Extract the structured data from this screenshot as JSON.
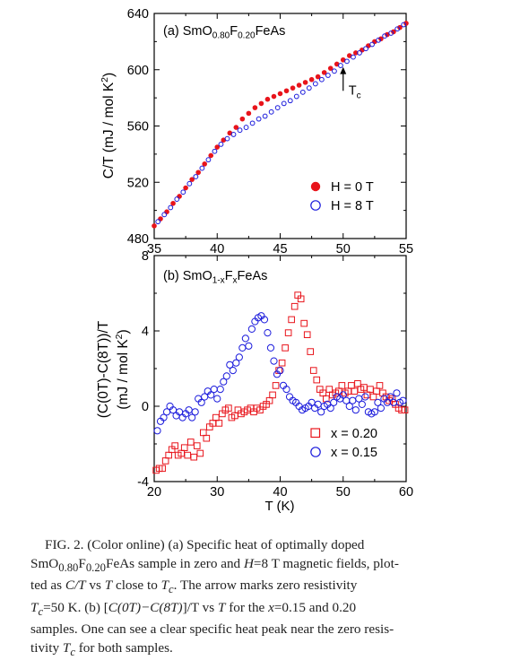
{
  "chart_data": [
    {
      "type": "scatter",
      "panel_label": "(a) SmO",
      "panel_sub1": "0.80",
      "panel_mid": "F",
      "panel_sub2": "0.20",
      "panel_tail": "FeAs",
      "ylabel": "C/T (mJ / mol K",
      "ylabel_sup": "2",
      "ylabel_end": ")",
      "xlim": [
        35,
        55
      ],
      "ylim": [
        480,
        640
      ],
      "xticks": [
        "35",
        "40",
        "45",
        "50",
        "55"
      ],
      "yticks": [
        "480",
        "520",
        "560",
        "600",
        "640"
      ],
      "annotation_arrow_x": 50,
      "annotation_label": "T",
      "annotation_sub": "c",
      "legend_position": "bottom-right",
      "series": [
        {
          "name": "H = 0 T",
          "marker": "filled-circle",
          "color": "#e8141b",
          "x": [
            35.0,
            35.5,
            36.0,
            36.5,
            37.0,
            37.5,
            38.0,
            38.5,
            39.0,
            39.5,
            40.0,
            40.5,
            41.0,
            41.5,
            42.0,
            42.5,
            43.0,
            43.5,
            44.0,
            44.5,
            45.0,
            45.5,
            46.0,
            46.5,
            47.0,
            47.5,
            48.0,
            48.5,
            49.0,
            49.5,
            50.0,
            50.5,
            51.0,
            51.5,
            52.0,
            52.5,
            53.0,
            53.5,
            54.0,
            54.5,
            55.0
          ],
          "y": [
            489,
            494,
            499,
            505,
            510,
            516,
            522,
            527,
            533,
            539,
            545,
            550,
            555,
            559,
            565,
            569,
            573,
            576,
            579,
            581,
            583,
            585,
            587,
            589,
            591,
            593,
            595,
            598,
            601,
            604,
            607,
            610,
            612,
            614,
            617,
            620,
            622,
            625,
            627,
            630,
            633
          ]
        },
        {
          "name": "H = 8 T",
          "marker": "open-circle",
          "color": "#1a1adc",
          "x": [
            35.3,
            35.8,
            36.3,
            36.8,
            37.3,
            37.8,
            38.3,
            38.8,
            39.3,
            39.8,
            40.3,
            40.8,
            41.3,
            41.8,
            42.3,
            42.8,
            43.3,
            43.8,
            44.3,
            44.8,
            45.3,
            45.8,
            46.3,
            46.8,
            47.3,
            47.8,
            48.3,
            48.8,
            49.3,
            49.8,
            50.3,
            50.8,
            51.3,
            51.8,
            52.3,
            52.8,
            53.3,
            53.8,
            54.3,
            54.8
          ],
          "y": [
            492,
            497,
            502,
            508,
            513,
            519,
            524,
            530,
            536,
            542,
            547,
            551,
            554,
            557,
            559,
            562,
            565,
            567,
            570,
            573,
            576,
            578,
            581,
            584,
            587,
            590,
            593,
            596,
            599,
            603,
            606,
            609,
            612,
            615,
            618,
            621,
            624,
            626,
            629,
            632
          ]
        }
      ]
    },
    {
      "type": "scatter",
      "panel_label": "(b) SmO",
      "panel_sub1": "1-x",
      "panel_mid": "F",
      "panel_sub2": "x",
      "panel_tail": "FeAs",
      "ylabel_line1": "(C(0T)-C(8T))/T",
      "ylabel_line2": "(mJ / mol K",
      "ylabel_sup": "2",
      "ylabel_end": ")",
      "xlabel": "T (K)",
      "xlim": [
        20,
        60
      ],
      "ylim": [
        -4,
        8
      ],
      "xticks": [
        "20",
        "30",
        "40",
        "50",
        "60"
      ],
      "yticks": [
        "-4",
        "0",
        "4",
        "8"
      ],
      "legend_position": "bottom-right",
      "series": [
        {
          "name": "x = 0.20",
          "marker": "open-square",
          "color": "#e8141b",
          "x": [
            20.3,
            20.8,
            21.3,
            21.8,
            22.3,
            22.8,
            23.3,
            23.8,
            24.3,
            24.8,
            25.3,
            25.8,
            26.3,
            26.8,
            27.3,
            27.8,
            28.3,
            28.8,
            29.3,
            29.8,
            30.3,
            30.8,
            31.3,
            31.8,
            32.3,
            32.8,
            33.3,
            33.8,
            34.3,
            34.8,
            35.3,
            35.8,
            36.3,
            36.8,
            37.3,
            37.8,
            38.3,
            38.8,
            39.3,
            39.8,
            40.3,
            40.8,
            41.3,
            41.8,
            42.3,
            42.8,
            43.3,
            43.8,
            44.3,
            44.8,
            45.3,
            45.8,
            46.3,
            46.8,
            47.3,
            47.8,
            48.3,
            48.8,
            49.3,
            49.8,
            50.3,
            50.8,
            51.3,
            51.8,
            52.3,
            52.8,
            53.3,
            53.8,
            54.3,
            54.8,
            55.3,
            55.8,
            56.3,
            56.8,
            57.3,
            57.8,
            58.3,
            58.8,
            59.3,
            59.8
          ],
          "y": [
            -3.4,
            -3.3,
            -3.3,
            -2.9,
            -2.6,
            -2.3,
            -2.1,
            -2.6,
            -2.5,
            -2.2,
            -2.6,
            -1.9,
            -2.7,
            -2.1,
            -2.5,
            -1.4,
            -1.7,
            -1.1,
            -0.9,
            -0.6,
            -0.9,
            -0.4,
            -0.2,
            -0.1,
            -0.6,
            -0.5,
            -0.2,
            -0.4,
            -0.3,
            -0.2,
            -0.1,
            -0.3,
            -0.1,
            -0.2,
            0.0,
            0.1,
            0.3,
            0.6,
            1.1,
            1.9,
            2.3,
            3.1,
            3.9,
            4.6,
            5.3,
            5.9,
            5.7,
            4.4,
            3.8,
            2.9,
            1.9,
            1.4,
            0.9,
            0.7,
            0.4,
            0.9,
            0.6,
            0.7,
            0.8,
            1.1,
            0.7,
            0.8,
            1.1,
            0.8,
            1.2,
            0.9,
            1.0,
            0.6,
            0.9,
            0.5,
            0.8,
            1.1,
            0.7,
            0.5,
            0.3,
            0.4,
            0.1,
            -0.1,
            -0.2,
            -0.2
          ]
        },
        {
          "name": "x = 0.15",
          "marker": "open-circle",
          "color": "#1a1adc",
          "x": [
            20.5,
            21.0,
            21.5,
            22.0,
            22.5,
            23.0,
            23.5,
            24.0,
            24.5,
            25.0,
            25.5,
            26.0,
            26.5,
            27.0,
            27.5,
            28.0,
            28.5,
            29.0,
            29.5,
            30.0,
            30.5,
            31.0,
            31.5,
            32.0,
            32.5,
            33.0,
            33.5,
            34.0,
            34.5,
            35.0,
            35.5,
            36.0,
            36.5,
            37.0,
            37.5,
            38.0,
            38.5,
            39.0,
            39.5,
            40.0,
            40.5,
            41.0,
            41.5,
            42.0,
            42.5,
            43.0,
            43.5,
            44.0,
            44.5,
            45.0,
            45.5,
            46.0,
            46.5,
            47.0,
            47.5,
            48.0,
            48.5,
            49.0,
            49.5,
            50.0,
            50.5,
            51.0,
            51.5,
            52.0,
            52.5,
            53.0,
            53.5,
            54.0,
            54.5,
            55.0,
            55.5,
            56.0,
            56.5,
            57.0,
            57.5,
            58.0,
            58.5,
            59.0,
            59.5
          ],
          "y": [
            -1.3,
            -0.8,
            -0.6,
            -0.3,
            0.0,
            -0.2,
            -0.5,
            -0.3,
            -0.6,
            -0.4,
            -0.2,
            -0.6,
            -0.3,
            0.4,
            0.2,
            0.5,
            0.8,
            0.6,
            0.9,
            0.4,
            0.9,
            1.3,
            1.6,
            2.2,
            1.9,
            2.3,
            2.6,
            3.1,
            3.6,
            3.2,
            4.1,
            4.5,
            4.7,
            4.8,
            4.6,
            3.9,
            3.1,
            2.4,
            1.7,
            1.9,
            1.1,
            0.9,
            0.5,
            0.3,
            0.2,
            0.0,
            -0.2,
            -0.1,
            0.0,
            0.2,
            -0.1,
            0.1,
            -0.3,
            0.0,
            0.1,
            -0.1,
            0.2,
            0.5,
            0.4,
            0.6,
            0.3,
            0.0,
            0.3,
            -0.2,
            0.4,
            0.1,
            0.5,
            -0.3,
            -0.4,
            -0.3,
            0.2,
            -0.1,
            0.4,
            0.2,
            0.5,
            0.2,
            0.7,
            0.2,
            0.3
          ]
        }
      ]
    }
  ],
  "caption": {
    "p1": "FIG. 2. (Color online) (a) Specific heat of optimally doped",
    "p2": "SmO",
    "p2_sub1": "0.80",
    "p2_mid": "F",
    "p2_sub2": "0.20",
    "p2_tail": "FeAs sample in zero and ",
    "p2_h": "H",
    "p2_after_h": "=8 T magnetic fields, plot-",
    "p3": "ted as ",
    "p3_ct": "C/T",
    "p3_vs": " vs ",
    "p3_t": "T",
    "p3_close": " close to ",
    "p3_tc": "T",
    "p3_tc_sub": "c",
    "p3_arrow": ". The arrow marks zero resistivity",
    "p4_tc": "T",
    "p4_tc_sub": "c",
    "p4_rest": "=50 K. (b) [",
    "p4_expr": "C(0T)−C(8T)",
    "p4_rest2": "]/T vs ",
    "p4_t": "T",
    "p4_for": " for the ",
    "p4_x": "x",
    "p4_vals": "=0.15 and 0.20",
    "p5": "samples. One can see a clear specific heat peak near the zero resis-",
    "p6": "tivity ",
    "p6_tc": "T",
    "p6_tc_sub": "c",
    "p6_rest": " for both samples."
  }
}
